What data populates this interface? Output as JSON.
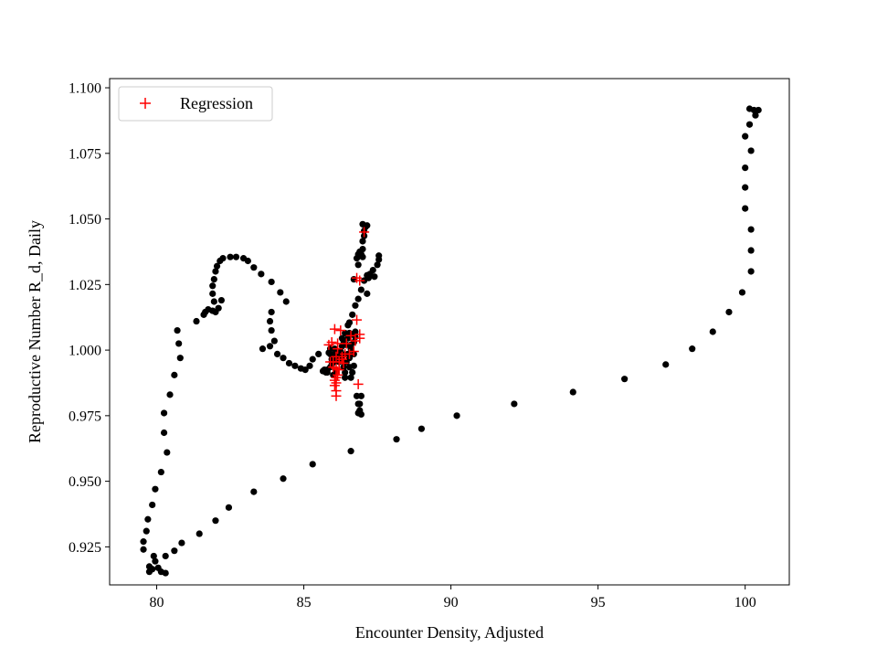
{
  "chart_data": {
    "type": "scatter",
    "title": "",
    "xlabel": "Encounter Density, Adjusted",
    "ylabel": "Reproductive Number R_d, Daily",
    "xlim": [
      78.4,
      101.5
    ],
    "ylim": [
      0.9105,
      1.1035
    ],
    "grid": false,
    "legend_position": "top-left",
    "x_ticks": [
      80,
      85,
      90,
      95,
      100
    ],
    "x_tick_labels": [
      "80",
      "85",
      "90",
      "95",
      "100"
    ],
    "y_ticks": [
      0.925,
      0.95,
      0.975,
      1.0,
      1.025,
      1.05,
      1.075,
      1.1
    ],
    "y_tick_labels": [
      "0.925",
      "0.950",
      "0.975",
      "1.000",
      "1.025",
      "1.050",
      "1.075",
      "1.100"
    ],
    "colors": {
      "observed": "#000000",
      "regression": "#ff0000",
      "axes": "#000000"
    },
    "series": [
      {
        "marker": "dot",
        "points": [
          [
            100.3,
            1.0915
          ],
          [
            100.45,
            1.0915
          ],
          [
            100.35,
            1.0895
          ],
          [
            100.15,
            1.092
          ],
          [
            100.15,
            1.086
          ],
          [
            100.0,
            1.0815
          ],
          [
            100.2,
            1.076
          ],
          [
            100.0,
            1.0695
          ],
          [
            100.0,
            1.062
          ],
          [
            100.0,
            1.054
          ],
          [
            100.2,
            1.046
          ],
          [
            100.2,
            1.038
          ],
          [
            100.2,
            1.03
          ],
          [
            99.9,
            1.022
          ],
          [
            99.45,
            1.0145
          ],
          [
            98.9,
            1.007
          ],
          [
            98.2,
            1.0005
          ],
          [
            97.3,
            0.9945
          ],
          [
            95.9,
            0.989
          ],
          [
            94.15,
            0.984
          ],
          [
            92.15,
            0.9795
          ],
          [
            90.2,
            0.975
          ],
          [
            89.0,
            0.97
          ],
          [
            88.15,
            0.966
          ],
          [
            86.6,
            0.9615
          ],
          [
            85.3,
            0.9565
          ],
          [
            84.3,
            0.951
          ],
          [
            83.3,
            0.946
          ],
          [
            82.45,
            0.94
          ],
          [
            82.0,
            0.935
          ],
          [
            81.45,
            0.93
          ],
          [
            80.85,
            0.9265
          ],
          [
            80.6,
            0.9235
          ],
          [
            80.3,
            0.9215
          ],
          [
            80.3,
            0.915
          ],
          [
            80.15,
            0.9155
          ],
          [
            80.05,
            0.917
          ],
          [
            79.95,
            0.9195
          ],
          [
            79.9,
            0.9215
          ],
          [
            79.85,
            0.9165
          ],
          [
            79.75,
            0.9155
          ],
          [
            79.75,
            0.9175
          ],
          [
            79.55,
            0.924
          ],
          [
            79.55,
            0.927
          ],
          [
            79.65,
            0.931
          ],
          [
            79.7,
            0.9355
          ],
          [
            79.85,
            0.941
          ],
          [
            79.95,
            0.947
          ],
          [
            80.15,
            0.9535
          ],
          [
            80.35,
            0.961
          ],
          [
            80.25,
            0.9685
          ],
          [
            80.25,
            0.976
          ],
          [
            80.45,
            0.983
          ],
          [
            80.6,
            0.9905
          ],
          [
            80.8,
            0.997
          ],
          [
            80.75,
            1.0025
          ],
          [
            80.7,
            1.0075
          ],
          [
            81.35,
            1.011
          ],
          [
            81.6,
            1.0135
          ],
          [
            81.65,
            1.0145
          ],
          [
            81.75,
            1.0155
          ],
          [
            81.9,
            1.015
          ],
          [
            82.0,
            1.0145
          ],
          [
            82.1,
            1.016
          ],
          [
            82.2,
            1.019
          ],
          [
            81.95,
            1.0185
          ],
          [
            81.9,
            1.0215
          ],
          [
            81.9,
            1.0245
          ],
          [
            81.95,
            1.027
          ],
          [
            82.0,
            1.03
          ],
          [
            82.05,
            1.032
          ],
          [
            82.15,
            1.034
          ],
          [
            82.25,
            1.035
          ],
          [
            82.5,
            1.0355
          ],
          [
            82.7,
            1.0355
          ],
          [
            82.95,
            1.035
          ],
          [
            83.1,
            1.034
          ],
          [
            83.3,
            1.0315
          ],
          [
            83.55,
            1.029
          ],
          [
            83.9,
            1.026
          ],
          [
            84.2,
            1.022
          ],
          [
            84.4,
            1.0185
          ],
          [
            83.9,
            1.0145
          ],
          [
            83.85,
            1.011
          ],
          [
            83.9,
            1.0075
          ],
          [
            84.0,
            1.0035
          ],
          [
            83.85,
            1.0015
          ],
          [
            83.6,
            1.0005
          ],
          [
            84.1,
            0.9985
          ],
          [
            84.3,
            0.997
          ],
          [
            84.5,
            0.995
          ],
          [
            84.7,
            0.994
          ],
          [
            84.9,
            0.993
          ],
          [
            85.05,
            0.9925
          ],
          [
            85.2,
            0.994
          ],
          [
            85.3,
            0.9965
          ],
          [
            85.5,
            0.9985
          ],
          [
            85.65,
            0.992
          ],
          [
            85.75,
            0.9915
          ],
          [
            85.9,
            0.9935
          ],
          [
            86.0,
            0.9965
          ],
          [
            86.1,
            0.9995
          ],
          [
            86.2,
            0.997
          ],
          [
            86.35,
            0.9955
          ],
          [
            86.55,
            0.997
          ],
          [
            86.7,
            0.994
          ],
          [
            86.6,
            0.9895
          ],
          [
            86.4,
            0.9895
          ],
          [
            86.8,
            0.9825
          ],
          [
            86.85,
            0.9795
          ],
          [
            86.9,
            0.977
          ],
          [
            86.85,
            0.976
          ],
          [
            86.95,
            0.9755
          ],
          [
            86.9,
            0.9795
          ],
          [
            86.95,
            0.9825
          ],
          [
            86.65,
            0.9915
          ],
          [
            86.7,
            0.9985
          ],
          [
            86.6,
            1.002
          ],
          [
            86.55,
            1.0065
          ],
          [
            86.5,
            1.0095
          ],
          [
            86.55,
            1.0105
          ],
          [
            86.65,
            1.0135
          ],
          [
            86.75,
            1.017
          ],
          [
            86.85,
            1.0195
          ],
          [
            86.95,
            1.023
          ],
          [
            87.05,
            1.0265
          ],
          [
            87.15,
            1.0285
          ],
          [
            87.35,
            1.0305
          ],
          [
            87.5,
            1.0325
          ],
          [
            87.55,
            1.0345
          ],
          [
            87.55,
            1.036
          ],
          [
            87.25,
            1.029
          ],
          [
            87.2,
            1.0275
          ],
          [
            87.4,
            1.028
          ],
          [
            87.15,
            1.0215
          ],
          [
            87.0,
            1.0355
          ],
          [
            86.85,
            1.0365
          ],
          [
            86.9,
            1.0375
          ],
          [
            86.95,
            1.0365
          ],
          [
            86.8,
            1.035
          ],
          [
            87.0,
            1.0385
          ],
          [
            87.0,
            1.0415
          ],
          [
            87.05,
            1.0435
          ],
          [
            87.05,
            1.0455
          ],
          [
            87.1,
            1.047
          ],
          [
            87.0,
            1.048
          ],
          [
            87.15,
            1.0475
          ],
          [
            86.85,
            1.0325
          ],
          [
            86.7,
            1.027
          ],
          [
            86.4,
            1.0065
          ],
          [
            86.3,
            1.0045
          ],
          [
            86.3,
            1.0015
          ],
          [
            86.25,
            0.9995
          ],
          [
            86.3,
            0.9975
          ],
          [
            86.2,
            0.9955
          ],
          [
            86.35,
            0.9935
          ],
          [
            86.1,
            0.992
          ],
          [
            85.95,
            0.9965
          ],
          [
            85.85,
            0.999
          ],
          [
            85.9,
            1.0005
          ],
          [
            85.7,
            0.9925
          ],
          [
            85.8,
            0.9915
          ],
          [
            86.0,
            0.9905
          ],
          [
            86.5,
            0.9985
          ],
          [
            86.6,
            1.0005
          ],
          [
            86.7,
            1.003
          ],
          [
            86.75,
            1.005
          ],
          [
            86.75,
            1.007
          ],
          [
            86.65,
            1.006
          ],
          [
            86.45,
            1.002
          ],
          [
            86.3,
            0.9985
          ],
          [
            86.15,
            0.9975
          ],
          [
            86.05,
            0.9955
          ],
          [
            85.95,
            0.9945
          ],
          [
            85.8,
            0.9925
          ],
          [
            86.05,
            0.9985
          ],
          [
            86.45,
            0.9955
          ],
          [
            86.55,
            0.9935
          ],
          [
            86.4,
            0.9915
          ],
          [
            86.05,
            1.0005
          ],
          [
            86.1,
            0.9975
          ],
          [
            85.9,
            0.9985
          ],
          [
            86.35,
            1.0035
          ],
          [
            86.5,
            1.0045
          ]
        ]
      },
      {
        "name": "Regression",
        "marker": "plus",
        "points": [
          [
            87.05,
            1.045
          ],
          [
            86.9,
            1.0265
          ],
          [
            86.8,
            1.0275
          ],
          [
            86.8,
            1.0115
          ],
          [
            86.05,
            1.008
          ],
          [
            86.25,
            1.0075
          ],
          [
            85.85,
            1.002
          ],
          [
            85.95,
            1.003
          ],
          [
            86.15,
            1.0025
          ],
          [
            86.45,
            1.0025
          ],
          [
            86.9,
            1.006
          ],
          [
            86.9,
            1.0045
          ],
          [
            86.1,
            0.9975
          ],
          [
            86.0,
            0.9955
          ],
          [
            86.2,
            0.9955
          ],
          [
            86.35,
            0.995
          ],
          [
            86.1,
            0.993
          ],
          [
            86.15,
            0.9905
          ],
          [
            86.1,
            0.9895
          ],
          [
            86.05,
            0.9885
          ],
          [
            86.1,
            0.9875
          ],
          [
            86.05,
            0.9865
          ],
          [
            86.1,
            0.9845
          ],
          [
            86.1,
            0.9825
          ],
          [
            86.85,
            0.987
          ],
          [
            86.3,
            0.9965
          ],
          [
            85.9,
            0.9955
          ],
          [
            86.0,
            0.9935
          ],
          [
            86.2,
            0.9925
          ],
          [
            86.4,
            0.9985
          ],
          [
            86.55,
            0.9985
          ],
          [
            86.7,
            0.9995
          ],
          [
            86.6,
            1.0055
          ],
          [
            86.75,
            1.0035
          ],
          [
            86.15,
            1.0005
          ],
          [
            86.3,
            0.9975
          ]
        ]
      }
    ]
  }
}
